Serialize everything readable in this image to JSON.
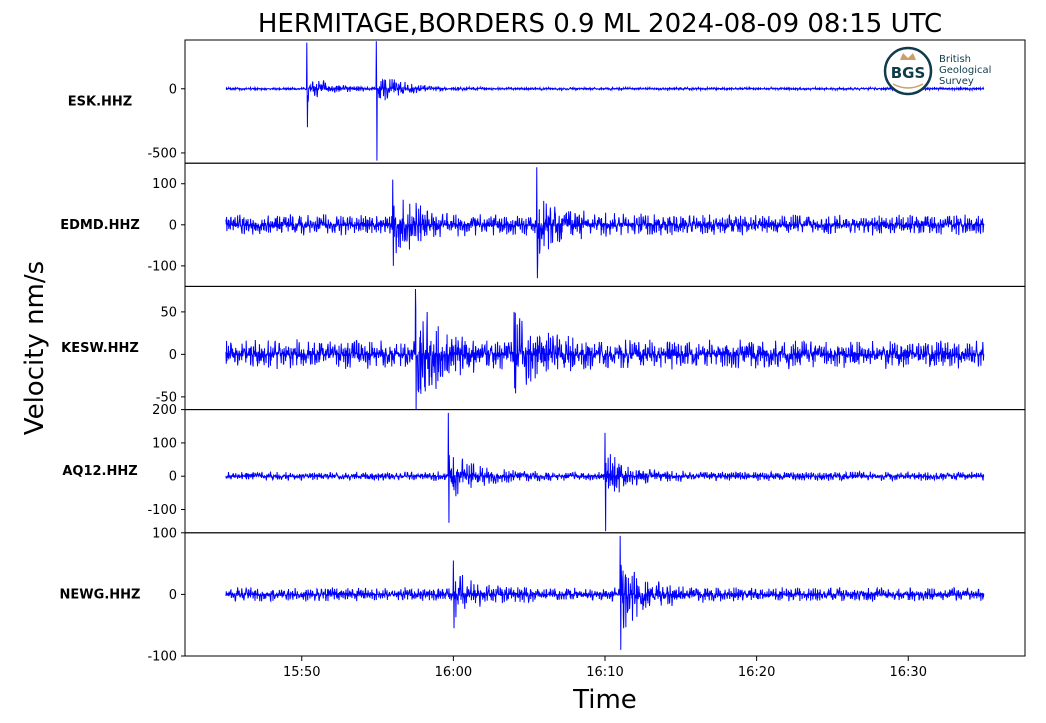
{
  "chart_data": {
    "type": "line",
    "title": "HERMITAGE,BORDERS 0.9 ML   2024-08-09 08:15 UTC",
    "xlabel": "Time",
    "ylabel": "Velocity nm/s",
    "x_range": [
      "15:45",
      "16:35"
    ],
    "x_ticks": [
      "15:50",
      "16:00",
      "16:10",
      "16:20",
      "16:30"
    ],
    "line_color": "#0000ff",
    "logo": {
      "abbr": "BGS",
      "lines": [
        "British",
        "Geological",
        "Survey"
      ]
    },
    "panels": [
      {
        "station": "ESK.HHZ",
        "ylim": [
          -580,
          380
        ],
        "yticks": [
          0,
          -500
        ],
        "ytick_labels": [
          "0",
          "-500"
        ],
        "noise": 10,
        "bursts": [
          {
            "t": "15:50:20",
            "peak_max": 360,
            "peak_min": -300,
            "level": 90
          },
          {
            "t": "15:54:55",
            "peak_max": 370,
            "peak_min": -560,
            "level": 120
          }
        ]
      },
      {
        "station": "EDMD.HHZ",
        "ylim": [
          -150,
          150
        ],
        "yticks": [
          100,
          0,
          -100
        ],
        "ytick_labels": [
          "100",
          "0",
          "-100"
        ],
        "noise": 22,
        "bursts": [
          {
            "t": "15:56:00",
            "peak_max": 110,
            "peak_min": -100,
            "level": 60
          },
          {
            "t": "16:05:30",
            "peak_max": 140,
            "peak_min": -130,
            "level": 70
          }
        ]
      },
      {
        "station": "KESW.HHZ",
        "ylim": [
          -65,
          80
        ],
        "yticks": [
          50,
          0,
          -50
        ],
        "ytick_labels": [
          "50",
          "0",
          "-50"
        ],
        "noise": 15,
        "bursts": [
          {
            "t": "15:57:30",
            "peak_max": 77,
            "peak_min": -65,
            "level": 45
          },
          {
            "t": "16:04:00",
            "peak_max": 50,
            "peak_min": -40,
            "level": 30
          }
        ]
      },
      {
        "station": "AQ12.HHZ",
        "ylim": [
          -170,
          200
        ],
        "yticks": [
          200,
          100,
          0,
          -100
        ],
        "ytick_labels": [
          "200",
          "100",
          "0",
          "-100"
        ],
        "noise": 12,
        "bursts": [
          {
            "t": "15:59:40",
            "peak_max": 190,
            "peak_min": -140,
            "level": 60
          },
          {
            "t": "16:10:00",
            "peak_max": 130,
            "peak_min": -165,
            "level": 65
          }
        ]
      },
      {
        "station": "NEWG.HHZ",
        "ylim": [
          -100,
          100
        ],
        "yticks": [
          100,
          0,
          -100
        ],
        "ytick_labels": [
          "100",
          "0",
          "-100"
        ],
        "noise": 10,
        "bursts": [
          {
            "t": "16:00:00",
            "peak_max": 55,
            "peak_min": -55,
            "level": 25
          },
          {
            "t": "16:11:00",
            "peak_max": 95,
            "peak_min": -90,
            "level": 50
          }
        ]
      }
    ]
  }
}
